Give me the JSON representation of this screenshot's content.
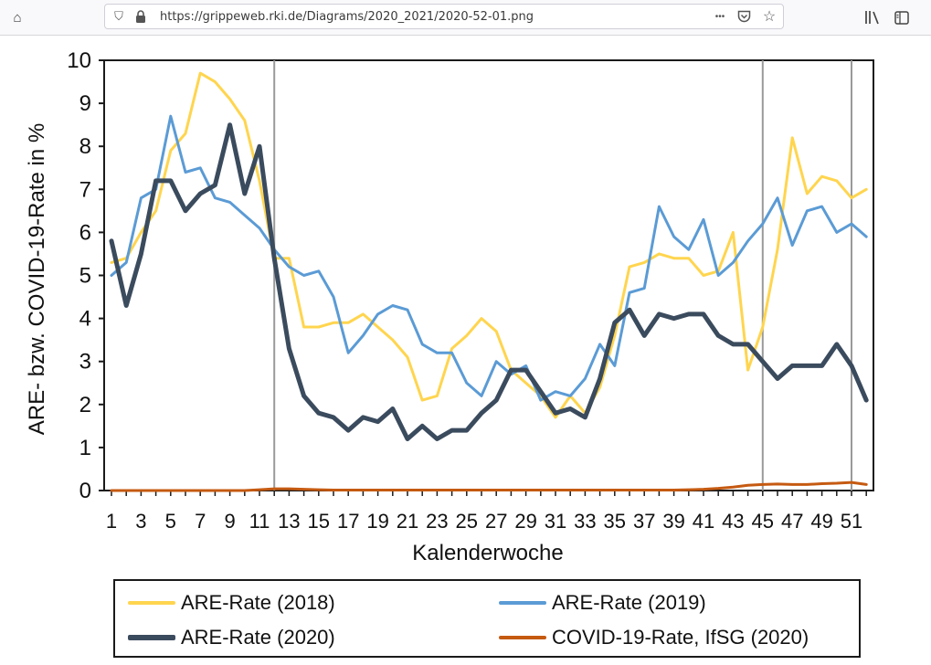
{
  "browser": {
    "url": "https://grippeweb.rki.de/Diagrams/2020_2021/2020-52-01.png",
    "icons": [
      "home-icon",
      "shield-icon",
      "lock-icon",
      "more-icon",
      "pocket-icon",
      "star-icon",
      "library-icon",
      "sidebar-icon"
    ],
    "more_label": "•••"
  },
  "chart_data": {
    "type": "line",
    "title": "",
    "xlabel": "Kalenderwoche",
    "ylabel": "ARE- bzw. COVID-19-Rate in %",
    "ylim": [
      0,
      10
    ],
    "yticks": [
      0,
      1,
      2,
      3,
      4,
      5,
      6,
      7,
      8,
      9,
      10
    ],
    "xlim": [
      1,
      52
    ],
    "xtick_labels": [
      "1",
      "3",
      "5",
      "7",
      "9",
      "11",
      "13",
      "15",
      "17",
      "19",
      "21",
      "23",
      "25",
      "27",
      "29",
      "31",
      "33",
      "35",
      "37",
      "39",
      "41",
      "43",
      "45",
      "47",
      "49",
      "51"
    ],
    "vertical_lines": [
      12,
      45,
      51
    ],
    "legend_position": "bottom",
    "series": [
      {
        "name": "ARE-Rate (2018)",
        "color": "#ffd54f",
        "width": 3,
        "values": [
          5.3,
          5.4,
          6.0,
          6.5,
          7.9,
          8.3,
          9.7,
          9.5,
          9.1,
          8.6,
          7.2,
          5.4,
          5.4,
          3.8,
          3.8,
          3.9,
          3.9,
          4.1,
          3.8,
          3.5,
          3.1,
          2.1,
          2.2,
          3.3,
          3.6,
          4.0,
          3.7,
          2.8,
          2.5,
          2.2,
          1.7,
          2.2,
          1.8,
          2.4,
          3.6,
          5.2,
          5.3,
          5.5,
          5.4,
          5.4,
          5.0,
          5.1,
          6.0,
          2.8,
          3.8,
          5.6,
          8.2,
          6.9,
          7.3,
          7.2,
          6.8,
          7.0
        ]
      },
      {
        "name": "ARE-Rate (2019)",
        "color": "#5b9bd5",
        "width": 3,
        "values": [
          5.0,
          5.3,
          6.8,
          7.0,
          8.7,
          7.4,
          7.5,
          6.8,
          6.7,
          6.4,
          6.1,
          5.6,
          5.2,
          5.0,
          5.1,
          4.5,
          3.2,
          3.6,
          4.1,
          4.3,
          4.2,
          3.4,
          3.2,
          3.2,
          2.5,
          2.2,
          3.0,
          2.7,
          2.9,
          2.1,
          2.3,
          2.2,
          2.6,
          3.4,
          2.9,
          4.6,
          4.7,
          6.6,
          5.9,
          5.6,
          6.3,
          5.0,
          5.3,
          5.8,
          6.2,
          6.8,
          5.7,
          6.5,
          6.6,
          6.0,
          6.2,
          5.9
        ]
      },
      {
        "name": "ARE-Rate (2020)",
        "color": "#3b4b5e",
        "width": 5,
        "values": [
          5.8,
          4.3,
          5.5,
          7.2,
          7.2,
          6.5,
          6.9,
          7.1,
          8.5,
          6.9,
          8.0,
          5.4,
          3.3,
          2.2,
          1.8,
          1.7,
          1.4,
          1.7,
          1.6,
          1.9,
          1.2,
          1.5,
          1.2,
          1.4,
          1.4,
          1.8,
          2.1,
          2.8,
          2.8,
          2.3,
          1.8,
          1.9,
          1.7,
          2.6,
          3.9,
          4.2,
          3.6,
          4.1,
          4.0,
          4.1,
          4.1,
          3.6,
          3.4,
          3.4,
          3.0,
          2.6,
          2.9,
          2.9,
          2.9,
          3.4,
          2.9,
          2.1
        ]
      },
      {
        "name": "COVID-19-Rate, IfSG (2020)",
        "color": "#c55a11",
        "width": 3,
        "values": [
          0,
          0,
          0,
          0,
          0,
          0,
          0,
          0,
          0,
          0,
          0.02,
          0.04,
          0.04,
          0.03,
          0.02,
          0.01,
          0.01,
          0.01,
          0.01,
          0.01,
          0.01,
          0.01,
          0.01,
          0.01,
          0.01,
          0.01,
          0.01,
          0.01,
          0.01,
          0.01,
          0.01,
          0.01,
          0.01,
          0.01,
          0.01,
          0.01,
          0.01,
          0.01,
          0.01,
          0.02,
          0.03,
          0.05,
          0.08,
          0.12,
          0.14,
          0.15,
          0.14,
          0.14,
          0.16,
          0.17,
          0.19,
          0.14
        ]
      }
    ]
  }
}
